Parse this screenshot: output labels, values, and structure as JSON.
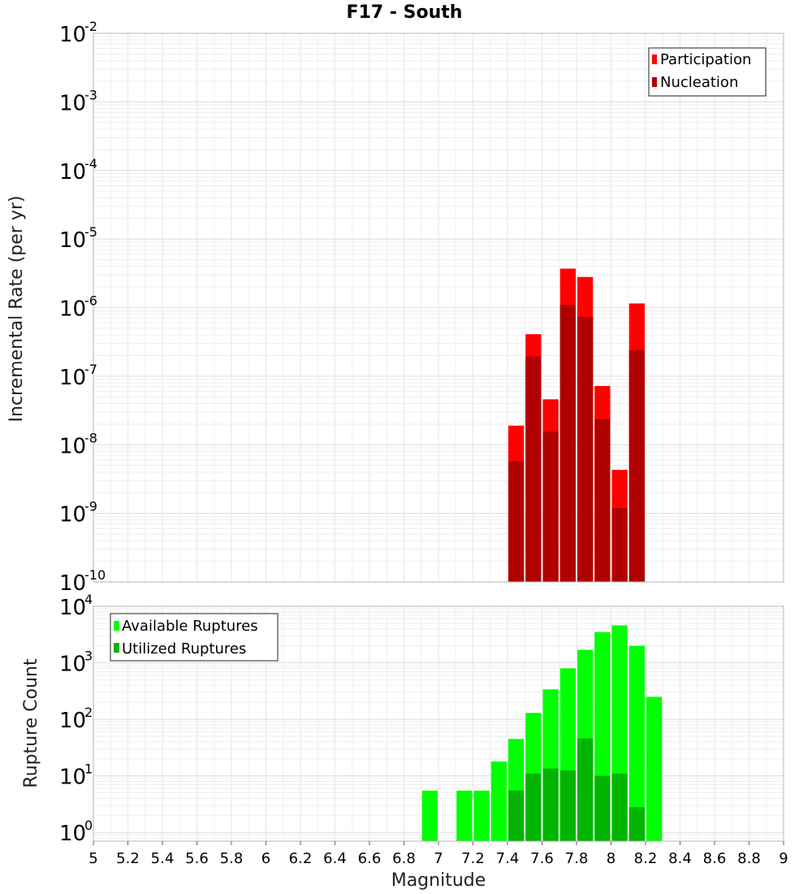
{
  "chart_data": [
    {
      "type": "bar",
      "title": "F17 - South",
      "xlabel": "",
      "ylabel": "Incremental Rate (per yr)",
      "xlim": [
        5,
        9
      ],
      "ylim": [
        1e-10,
        0.01
      ],
      "yscale": "log",
      "y_tick_exponents": [
        "-10",
        "-9",
        "-8",
        "-7",
        "-6",
        "-5",
        "-4",
        "-3",
        "-2"
      ],
      "grid": true,
      "legend_position": "top-right",
      "bar_width": 0.1,
      "series": [
        {
          "name": "Participation",
          "color": "#ff0000",
          "x": [
            7.45,
            7.55,
            7.65,
            7.75,
            7.85,
            7.95,
            8.05,
            8.15
          ],
          "values": [
            1.9e-08,
            4.1e-07,
            4.6e-08,
            3.7e-06,
            2.8e-06,
            7.2e-08,
            4.3e-09,
            1.15e-06
          ]
        },
        {
          "name": "Nucleation",
          "color": "#b00000",
          "x": [
            7.45,
            7.55,
            7.65,
            7.75,
            7.85,
            7.95,
            8.05,
            8.15
          ],
          "values": [
            5.7e-09,
            1.95e-07,
            1.55e-08,
            1.1e-06,
            7.3e-07,
            2.35e-08,
            1.2e-09,
            2.4e-07
          ]
        }
      ]
    },
    {
      "type": "bar",
      "title": "",
      "xlabel": "Magnitude",
      "ylabel": "Rupture Count",
      "xlim": [
        5,
        9
      ],
      "ylim": [
        0.7,
        10000
      ],
      "yscale": "log",
      "y_tick_exponents": [
        "0",
        "1",
        "2",
        "3",
        "4"
      ],
      "x_tick_labels": [
        "5",
        "5.2",
        "5.4",
        "5.6",
        "5.8",
        "6",
        "6.2",
        "6.4",
        "6.6",
        "6.8",
        "7",
        "7.2",
        "7.4",
        "7.6",
        "7.8",
        "8",
        "8.2",
        "8.4",
        "8.6",
        "8.8",
        "9"
      ],
      "grid": true,
      "legend_position": "top-left",
      "bar_width": 0.1,
      "series": [
        {
          "name": "Available Ruptures",
          "color": "#00ff00",
          "x": [
            6.95,
            7.15,
            7.25,
            7.35,
            7.45,
            7.55,
            7.65,
            7.75,
            7.85,
            7.95,
            8.05,
            8.15,
            8.25
          ],
          "values": [
            5.5,
            5.5,
            5.5,
            18,
            45,
            130,
            340,
            800,
            1700,
            3500,
            4600,
            2000,
            250
          ]
        },
        {
          "name": "Utilized Ruptures",
          "color": "#00b400",
          "x": [
            7.45,
            7.55,
            7.65,
            7.75,
            7.85,
            7.95,
            8.05,
            8.15
          ],
          "values": [
            5.5,
            11,
            13.5,
            12.5,
            46,
            10,
            11,
            2.8
          ]
        }
      ]
    }
  ]
}
